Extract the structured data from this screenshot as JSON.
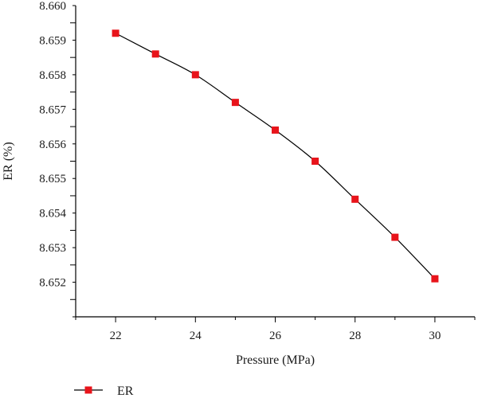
{
  "chart_data": {
    "type": "line",
    "title": "",
    "xlabel": "Pressure (MPa)",
    "ylabel": "ER (%)",
    "xlim": [
      21,
      31
    ],
    "ylim": [
      8.651,
      8.66
    ],
    "x_ticks": [
      22,
      24,
      26,
      28,
      30
    ],
    "y_ticks": [
      8.652,
      8.653,
      8.654,
      8.655,
      8.656,
      8.657,
      8.658,
      8.659,
      8.66
    ],
    "x_tick_labels": [
      "22",
      "24",
      "26",
      "28",
      "30"
    ],
    "y_tick_labels": [
      "8.652",
      "8.653",
      "8.654",
      "8.655",
      "8.656",
      "8.657",
      "8.658",
      "8.659",
      "8.660"
    ],
    "grid": false,
    "legend_position": "bottom-left",
    "series": [
      {
        "name": "ER",
        "color": "#e8141b",
        "line_color": "#000000",
        "marker": "square",
        "x": [
          22,
          23,
          24,
          25,
          26,
          27,
          28,
          29,
          30
        ],
        "y": [
          8.6592,
          8.6586,
          8.658,
          8.6572,
          8.6564,
          8.6555,
          8.6544,
          8.6533,
          8.6521
        ]
      }
    ]
  }
}
